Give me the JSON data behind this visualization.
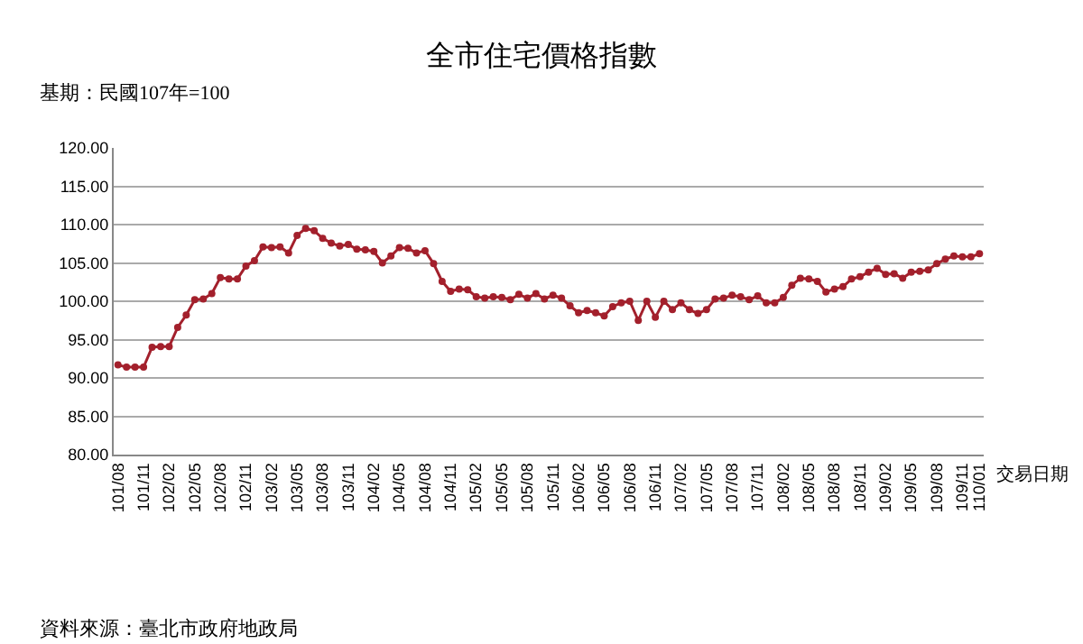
{
  "chart_data": {
    "type": "line",
    "title": "全市住宅價格指數",
    "subtitle": "基期：民國107年=100",
    "xlabel": "交易日期",
    "annotations": [
      "資料來源：臺北市政府地政局"
    ],
    "categories": [
      "101/08",
      null,
      null,
      "101/11",
      null,
      null,
      "102/02",
      null,
      null,
      "102/05",
      null,
      null,
      "102/08",
      null,
      null,
      "102/11",
      null,
      null,
      "103/02",
      null,
      null,
      "103/05",
      null,
      null,
      "103/08",
      null,
      null,
      "103/11",
      null,
      null,
      "104/02",
      null,
      null,
      "104/05",
      null,
      null,
      "104/08",
      null,
      null,
      "104/11",
      null,
      null,
      "105/02",
      null,
      null,
      "105/05",
      null,
      null,
      "105/08",
      null,
      null,
      "105/11",
      null,
      null,
      "106/02",
      null,
      null,
      "106/05",
      null,
      null,
      "106/08",
      null,
      null,
      "106/11",
      null,
      null,
      "107/02",
      null,
      null,
      "107/05",
      null,
      null,
      "107/08",
      null,
      null,
      "107/11",
      null,
      null,
      "108/02",
      null,
      null,
      "108/05",
      null,
      null,
      "108/08",
      null,
      null,
      "108/11",
      null,
      null,
      "109/02",
      null,
      null,
      "109/05",
      null,
      null,
      "109/08",
      null,
      null,
      "109/11",
      null,
      "110/01"
    ],
    "series": [
      {
        "color": "#a3202c",
        "values": [
          91.7,
          91.4,
          91.4,
          91.4,
          94.0,
          94.1,
          94.1,
          96.6,
          98.2,
          100.2,
          100.3,
          101.0,
          103.1,
          102.9,
          102.9,
          104.6,
          105.3,
          107.1,
          107.0,
          107.1,
          106.3,
          108.6,
          109.5,
          109.2,
          108.2,
          107.6,
          107.2,
          107.4,
          106.8,
          106.7,
          106.5,
          105.0,
          105.9,
          107.0,
          106.9,
          106.3,
          106.6,
          104.9,
          102.6,
          101.3,
          101.6,
          101.5,
          100.6,
          100.4,
          100.6,
          100.5,
          100.2,
          100.9,
          100.4,
          101.0,
          100.3,
          100.8,
          100.4,
          99.4,
          98.5,
          98.8,
          98.5,
          98.1,
          99.3,
          99.8,
          100.0,
          97.5,
          100.0,
          97.9,
          100.0,
          98.9,
          99.8,
          98.9,
          98.4,
          98.9,
          100.3,
          100.4,
          100.8,
          100.6,
          100.2,
          100.7,
          99.8,
          99.8,
          100.5,
          102.1,
          103.0,
          102.9,
          102.6,
          101.2,
          101.6,
          101.9,
          102.9,
          103.2,
          103.8,
          104.3,
          103.5,
          103.6,
          103.0,
          103.8,
          103.9,
          104.1,
          104.9,
          105.5,
          105.9,
          105.8,
          105.8,
          106.2
        ]
      }
    ],
    "ylim": [
      80,
      120
    ],
    "yticks": [
      {
        "value": 80,
        "label": "80.00"
      },
      {
        "value": 85,
        "label": "85.00"
      },
      {
        "value": 90,
        "label": "90.00"
      },
      {
        "value": 95,
        "label": "95.00"
      },
      {
        "value": 100,
        "label": "100.00"
      },
      {
        "value": 105,
        "label": "105.00"
      },
      {
        "value": 110,
        "label": "110.00"
      },
      {
        "value": 115,
        "label": "115.00"
      },
      {
        "value": 120,
        "label": "120.00"
      }
    ],
    "grid": "y",
    "marker": "circle",
    "line_style": "solid"
  }
}
